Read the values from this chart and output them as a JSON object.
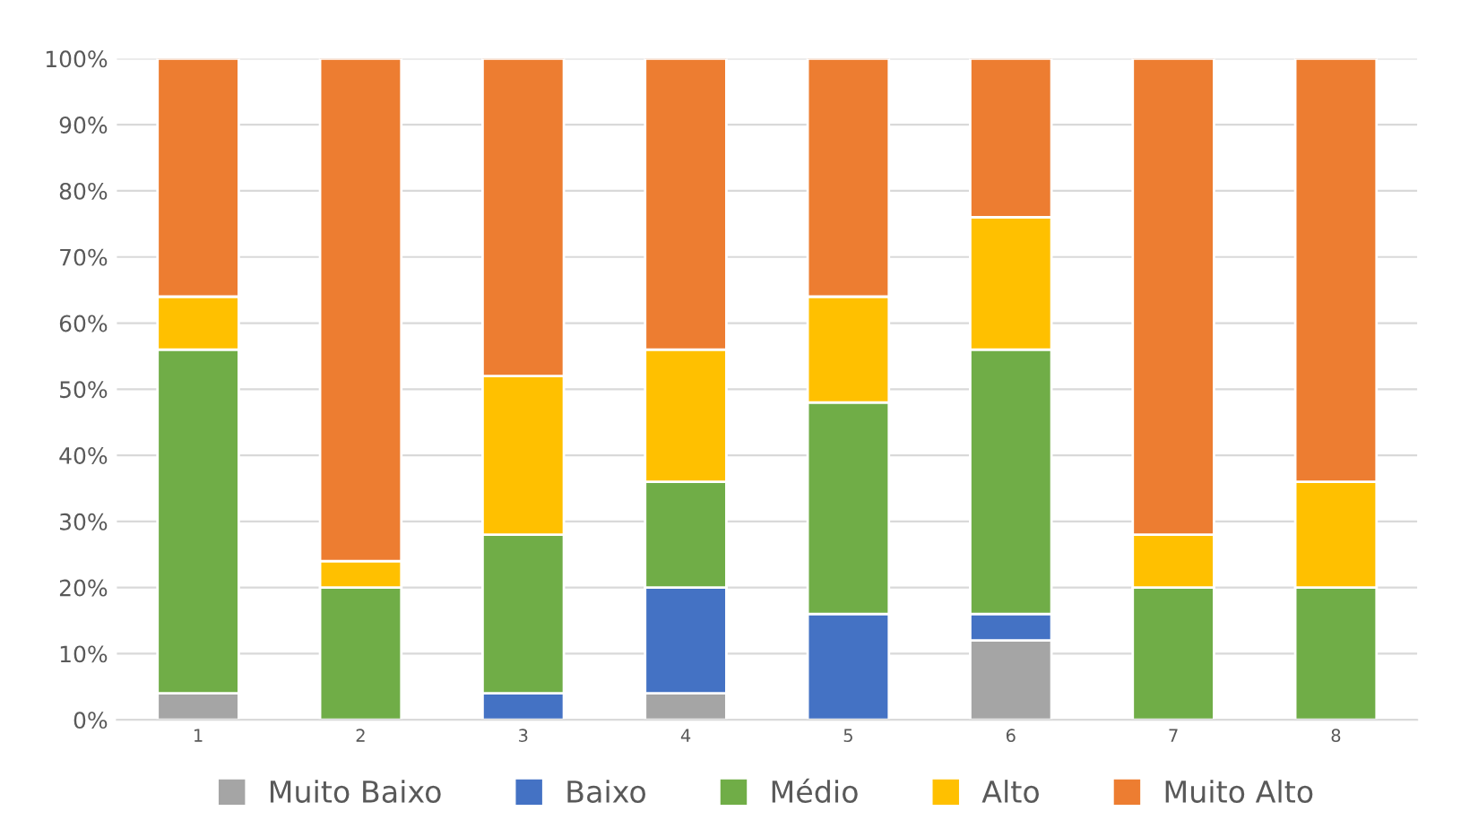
{
  "chart_data": {
    "type": "bar",
    "stacked": true,
    "categories": [
      "1",
      "2",
      "3",
      "4",
      "5",
      "6",
      "7",
      "8"
    ],
    "series": [
      {
        "name": "Muito Baixo",
        "color": "#a5a5a5",
        "values": [
          4,
          0,
          0,
          4,
          0,
          12,
          0,
          0
        ]
      },
      {
        "name": "Baixo",
        "color": "#4472c4",
        "values": [
          0,
          0,
          4,
          16,
          16,
          4,
          0,
          0
        ]
      },
      {
        "name": "Médio",
        "color": "#70ad47",
        "values": [
          52,
          20,
          24,
          16,
          32,
          40,
          20,
          20
        ]
      },
      {
        "name": "Alto",
        "color": "#ffc000",
        "values": [
          8,
          4,
          24,
          20,
          16,
          20,
          8,
          16
        ]
      },
      {
        "name": "Muito Alto",
        "color": "#ed7d31",
        "values": [
          36,
          76,
          48,
          44,
          36,
          24,
          72,
          64
        ]
      }
    ],
    "ylim": [
      0,
      100
    ],
    "yticks": [
      {
        "value": 0,
        "label": "0%"
      },
      {
        "value": 10,
        "label": "10%"
      },
      {
        "value": 20,
        "label": "20%"
      },
      {
        "value": 30,
        "label": "30%"
      },
      {
        "value": 40,
        "label": "40%"
      },
      {
        "value": 50,
        "label": "50%"
      },
      {
        "value": 60,
        "label": "60%"
      },
      {
        "value": 70,
        "label": "70%"
      },
      {
        "value": 80,
        "label": "80%"
      },
      {
        "value": 90,
        "label": "90%"
      },
      {
        "value": 100,
        "label": "100%"
      }
    ],
    "grid": "y",
    "legend": "bottom"
  }
}
